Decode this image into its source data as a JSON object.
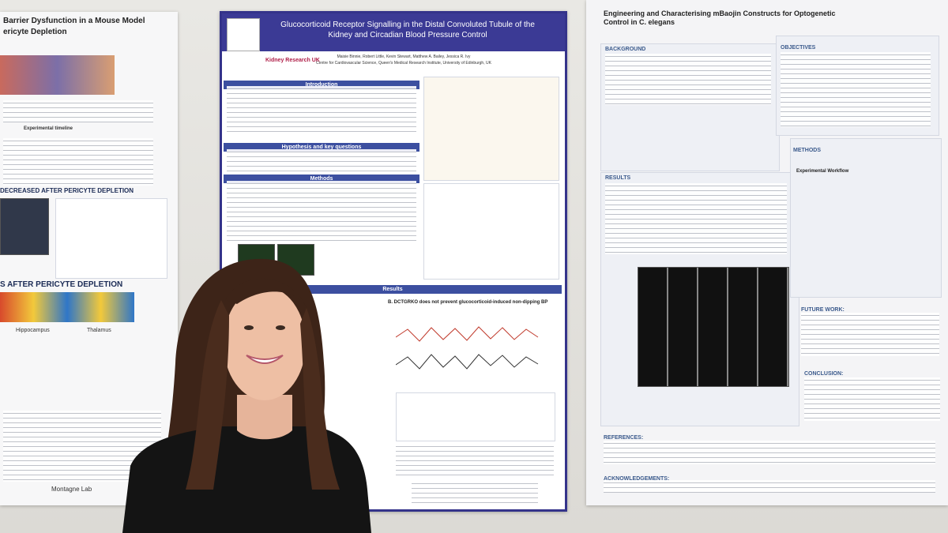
{
  "left_poster": {
    "title_lines": [
      "Barrier Dysfunction in a Mouse Model",
      "ericyte Depletion"
    ],
    "timeline": "Experimental timeline",
    "headings": [
      "DECREASED AFTER PERICYTE DEPLETION",
      "S AFTER PERICYTE DEPLETION"
    ],
    "labels": [
      "Hippocampus",
      "Thalamus"
    ],
    "lab": "Montagne Lab"
  },
  "center_poster": {
    "title": "Glucocorticoid Receptor Signalling in the Distal Convoluted Tubule of the Kidney and Circadian Blood Pressure Control",
    "authors": "Maisie Binnie, Robert Little, Kevin Stewart, Matthew A. Bailey, Jessica R. Ivy",
    "affiliation": "Centre for Cardiovascular Science, Queen's Medical Research Institute, University of Edinburgh, UK",
    "sponsor": "Kidney Research UK",
    "sections": [
      "Introduction",
      "Hypothesis and key questions",
      "Methods",
      "Results"
    ],
    "result_heading": "B. DCTGRKO does not prevent glucocorticoid-induced non-dipping BP"
  },
  "right_poster": {
    "title": "Engineering and Characterising mBaojin Constructs for Optogenetic Control in C. elegans",
    "sections": [
      "BACKGROUND",
      "OBJECTIVES",
      "RESULTS",
      "METHODS",
      "FUTURE WORK:",
      "CONCLUSION:",
      "REFERENCES:",
      "ACKNOWLEDGEMENTS:"
    ],
    "workflow": "Experimental Workflow"
  }
}
